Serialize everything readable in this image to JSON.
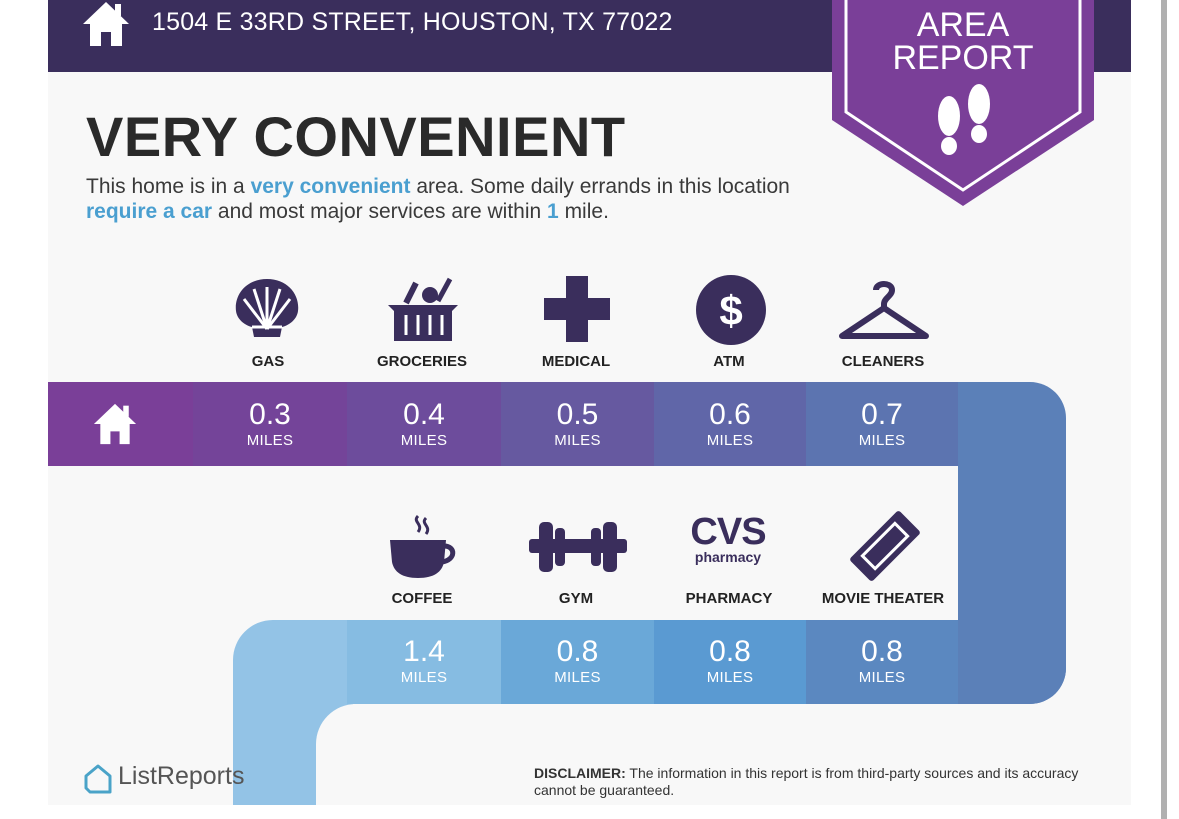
{
  "header": {
    "address": "1504 E 33RD STREET, HOUSTON, TX 77022",
    "home_icon": "home-icon"
  },
  "badge": {
    "line1": "AREA",
    "line2": "REPORT",
    "icon": "footprints-icon"
  },
  "title": "VERY CONVENIENT",
  "description": {
    "p1": "This home is in a ",
    "h1": "very convenient",
    "p2": " area. Some daily errands in this location ",
    "h2": "require a car",
    "p3": " and most major services are within ",
    "h3": "1",
    "p4": " mile."
  },
  "row1": [
    {
      "label": "GAS",
      "value": "0.3",
      "unit": "MILES",
      "icon": "shell-icon"
    },
    {
      "label": "GROCERIES",
      "value": "0.4",
      "unit": "MILES",
      "icon": "grocery-basket-icon"
    },
    {
      "label": "MEDICAL",
      "value": "0.5",
      "unit": "MILES",
      "icon": "medical-cross-icon"
    },
    {
      "label": "ATM",
      "value": "0.6",
      "unit": "MILES",
      "icon": "dollar-icon"
    },
    {
      "label": "CLEANERS",
      "value": "0.7",
      "unit": "MILES",
      "icon": "hanger-icon"
    }
  ],
  "row2": [
    {
      "label": "COFFEE",
      "value": "1.4",
      "unit": "MILES",
      "icon": "coffee-cup-icon"
    },
    {
      "label": "GYM",
      "value": "0.8",
      "unit": "MILES",
      "icon": "dumbbell-icon"
    },
    {
      "label": "PHARMACY",
      "value": "0.8",
      "unit": "MILES",
      "icon": "cvs-logo-icon",
      "logo_text": "CVS",
      "logo_sub": "pharmacy"
    },
    {
      "label": "MOVIE THEATER",
      "value": "0.8",
      "unit": "MILES",
      "icon": "ticket-icon"
    }
  ],
  "footer": {
    "brand": "ListReports",
    "disclaimer_label": "DISCLAIMER:",
    "disclaimer_text": " The information in this report is from third-party sources and its accuracy cannot be guaranteed."
  },
  "colors": {
    "header": "#3a2e5c",
    "badge": "#7a3f98",
    "accent": "#4a9fd0",
    "icon": "#3a2e5c"
  }
}
